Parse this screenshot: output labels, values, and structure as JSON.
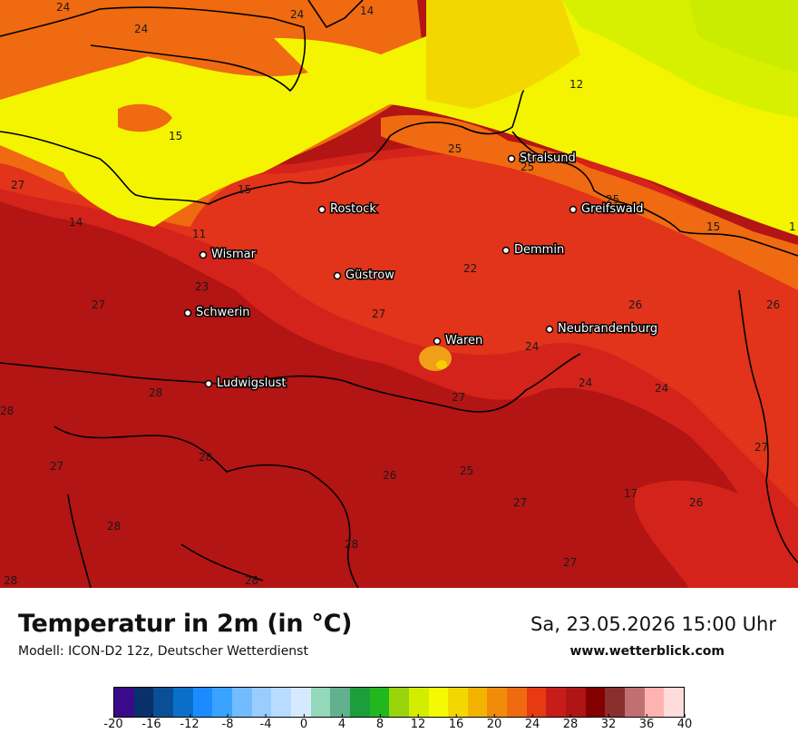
{
  "title": "Temperatur in 2m (in °C)",
  "subtitle": "Modell: ICON-D2 12z, Deutscher Wetterdienst",
  "datetime": "Sa, 23.05.2026 15:00 Uhr",
  "website": "www.wetterblick.com",
  "cities": [
    {
      "name": "Stralsund"
    },
    {
      "name": "Rostock"
    },
    {
      "name": "Greifswald"
    },
    {
      "name": "Demmin"
    },
    {
      "name": "Wismar"
    },
    {
      "name": "Güstrow"
    },
    {
      "name": "Schwerin"
    },
    {
      "name": "Neubrandenburg"
    },
    {
      "name": "Waren"
    },
    {
      "name": "Ludwigslust"
    }
  ],
  "values": [
    "24",
    "24",
    "24",
    "14",
    "12",
    "15",
    "25",
    "25",
    "15",
    "25",
    "27",
    "14",
    "11",
    "15",
    "23",
    "22",
    "27",
    "26",
    "26",
    "27",
    "24",
    "24",
    "24",
    "28",
    "28",
    "27",
    "28",
    "27",
    "26",
    "25",
    "27",
    "26",
    "27",
    "28",
    "28",
    "28",
    "28",
    "27",
    "17",
    "1"
  ],
  "colorbar": {
    "colors": [
      "#3b0a8a",
      "#08306b",
      "#0a4f96",
      "#0870c8",
      "#1a8cff",
      "#3aa3ff",
      "#73bbff",
      "#99ccff",
      "#b8dcff",
      "#d6eaff",
      "#93d8b8",
      "#62b08e",
      "#1c9e3c",
      "#20b81e",
      "#9ad40a",
      "#d3ed00",
      "#f4fa00",
      "#f2d800",
      "#f2b400",
      "#f08c0a",
      "#ef6a10",
      "#e83a12",
      "#c71d1a",
      "#b01515",
      "#820000",
      "#8b2e2e",
      "#c07070",
      "#ffb3b0",
      "#ffdcdc"
    ],
    "ticks": [
      "-20",
      "-16",
      "-12",
      "-8",
      "-4",
      "0",
      "4",
      "8",
      "12",
      "16",
      "20",
      "24",
      "28",
      "32",
      "36",
      "40"
    ]
  }
}
